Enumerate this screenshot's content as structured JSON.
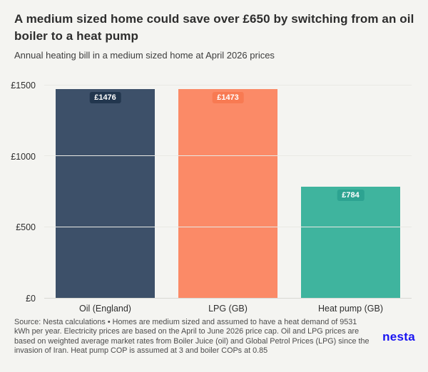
{
  "header": {
    "title": "A medium sized home could save over £650 by switching from an oil boiler to a heat pump",
    "subtitle": "Annual heating bill in a medium sized home at April 2026 prices"
  },
  "chart_data": {
    "type": "bar",
    "title": "A medium sized home could save over £650 by switching from an oil boiler to a heat pump",
    "subtitle": "Annual heating bill in a medium sized home at April 2026 prices",
    "categories": [
      "Oil (England)",
      "LPG (GB)",
      "Heat pump (GB)"
    ],
    "values": [
      1476,
      1473,
      784
    ],
    "value_labels": [
      "£1476",
      "£1473",
      "£784"
    ],
    "bar_colors": [
      "#3d5069",
      "#fb8a67",
      "#3fb49e"
    ],
    "badge_colors": [
      "#22364e",
      "#f87a52",
      "#2da391"
    ],
    "xlabel": "",
    "ylabel": "",
    "ylim": [
      0,
      1500
    ],
    "yticks": [
      0,
      500,
      1000,
      1500
    ],
    "ytick_labels": [
      "£0",
      "£500",
      "£1000",
      "£1500"
    ],
    "grid": "horizontal-faint",
    "legend": "none"
  },
  "footer": {
    "source": "Source: Nesta calculations • Homes are medium sized and assumed to have a heat demand of 9531 kWh per year. Electricity prices are based on the April to June 2026 price cap. Oil and LPG prices are based on weighted average market rates from Boiler Juice (oil) and Global Petrol Prices (LPG) since the invasion of Iran. Heat pump COP is assumed at 3 and boiler COPs at 0.85",
    "logo_text": "nesta"
  },
  "colors": {
    "background": "#f4f4f1",
    "title_text": "#2d2d2d",
    "gridline": "#e9e9e4",
    "baseline": "#d8d8d3",
    "footer_text": "#4c4c4c",
    "nesta_blue": "#1813f2"
  }
}
